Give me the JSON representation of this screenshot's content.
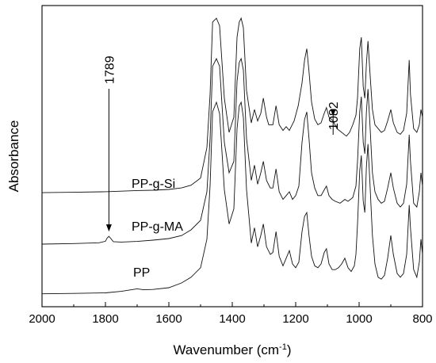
{
  "chart_data": {
    "type": "line",
    "title": "",
    "xlabel": "Wavenumber (cm",
    "xlabel_sup": "-1",
    "xlabel_close": ")",
    "ylabel": "Absorbance",
    "xlim": [
      2000,
      800
    ],
    "x_reversed": true,
    "y_tick_labels": false,
    "grid": false,
    "x_ticks": [
      2000,
      1800,
      1600,
      1400,
      1200,
      1000,
      800
    ],
    "x_tick_labels": [
      "2000",
      "1800",
      "1600",
      "1400",
      "1200",
      "1000",
      "800"
    ],
    "annotations": [
      {
        "label": "1789",
        "x": 1789,
        "series": "PP-g-MA"
      },
      {
        "label": "1082",
        "x": 1082,
        "series": "PP-g-Si"
      }
    ],
    "series": [
      {
        "name": "PP-g-Si",
        "points": [
          [
            2000,
            8.3
          ],
          [
            1900,
            8.5
          ],
          [
            1800,
            8.8
          ],
          [
            1700,
            9.4
          ],
          [
            1650,
            9.6
          ],
          [
            1600,
            10.0
          ],
          [
            1560,
            10.8
          ],
          [
            1530,
            12.2
          ],
          [
            1500,
            16
          ],
          [
            1480,
            32
          ],
          [
            1470,
            60
          ],
          [
            1462,
            98
          ],
          [
            1450,
            100
          ],
          [
            1440,
            96
          ],
          [
            1425,
            58
          ],
          [
            1410,
            40
          ],
          [
            1395,
            48
          ],
          [
            1385,
            90
          ],
          [
            1378,
            98
          ],
          [
            1372,
            100
          ],
          [
            1365,
            95
          ],
          [
            1355,
            62
          ],
          [
            1340,
            45
          ],
          [
            1330,
            52
          ],
          [
            1320,
            46
          ],
          [
            1310,
            50
          ],
          [
            1302,
            58
          ],
          [
            1292,
            48
          ],
          [
            1285,
            44
          ],
          [
            1272,
            44
          ],
          [
            1262,
            54
          ],
          [
            1252,
            44
          ],
          [
            1240,
            41
          ],
          [
            1230,
            43
          ],
          [
            1220,
            41
          ],
          [
            1205,
            46
          ],
          [
            1192,
            54
          ],
          [
            1180,
            66
          ],
          [
            1172,
            78
          ],
          [
            1165,
            84
          ],
          [
            1158,
            72
          ],
          [
            1150,
            56
          ],
          [
            1140,
            47
          ],
          [
            1130,
            44
          ],
          [
            1120,
            45
          ],
          [
            1110,
            50
          ],
          [
            1103,
            53
          ],
          [
            1095,
            48
          ],
          [
            1082,
            46
          ],
          [
            1070,
            42
          ],
          [
            1055,
            40
          ],
          [
            1040,
            38
          ],
          [
            1030,
            40
          ],
          [
            1020,
            44
          ],
          [
            1010,
            49
          ],
          [
            1005,
            58
          ],
          [
            998,
            84
          ],
          [
            993,
            90
          ],
          [
            987,
            64
          ],
          [
            982,
            58
          ],
          [
            977,
            76
          ],
          [
            972,
            88
          ],
          [
            966,
            72
          ],
          [
            958,
            52
          ],
          [
            950,
            44
          ],
          [
            940,
            42
          ],
          [
            930,
            40
          ],
          [
            920,
            41
          ],
          [
            910,
            46
          ],
          [
            900,
            52
          ],
          [
            892,
            45
          ],
          [
            880,
            40
          ],
          [
            870,
            39
          ],
          [
            860,
            41
          ],
          [
            850,
            50
          ],
          [
            842,
            78
          ],
          [
            838,
            60
          ],
          [
            828,
            42
          ],
          [
            818,
            40
          ],
          [
            810,
            44
          ],
          [
            805,
            52
          ],
          [
            800,
            48
          ]
        ]
      },
      {
        "name": "PP-g-MA",
        "points": [
          [
            2000,
            2.5
          ],
          [
            1900,
            2.8
          ],
          [
            1820,
            3.2
          ],
          [
            1800,
            4.0
          ],
          [
            1795,
            5.6
          ],
          [
            1789,
            6.6
          ],
          [
            1783,
            5.4
          ],
          [
            1775,
            3.8
          ],
          [
            1750,
            3.6
          ],
          [
            1700,
            3.9
          ],
          [
            1650,
            4.6
          ],
          [
            1600,
            5.4
          ],
          [
            1560,
            7.0
          ],
          [
            1530,
            10.0
          ],
          [
            1500,
            15
          ],
          [
            1480,
            30
          ],
          [
            1470,
            58
          ],
          [
            1462,
            96
          ],
          [
            1450,
            100
          ],
          [
            1440,
            96
          ],
          [
            1425,
            56
          ],
          [
            1410,
            40
          ],
          [
            1395,
            46
          ],
          [
            1385,
            88
          ],
          [
            1378,
            98
          ],
          [
            1372,
            100
          ],
          [
            1365,
            94
          ],
          [
            1355,
            58
          ],
          [
            1340,
            36
          ],
          [
            1330,
            44
          ],
          [
            1320,
            34
          ],
          [
            1310,
            40
          ],
          [
            1302,
            46
          ],
          [
            1292,
            36
          ],
          [
            1280,
            32
          ],
          [
            1272,
            32
          ],
          [
            1262,
            42
          ],
          [
            1252,
            30
          ],
          [
            1240,
            26
          ],
          [
            1230,
            28
          ],
          [
            1220,
            30
          ],
          [
            1210,
            26
          ],
          [
            1200,
            28
          ],
          [
            1190,
            33
          ],
          [
            1180,
            56
          ],
          [
            1172,
            68
          ],
          [
            1165,
            72
          ],
          [
            1158,
            58
          ],
          [
            1150,
            40
          ],
          [
            1140,
            32
          ],
          [
            1130,
            28
          ],
          [
            1120,
            28
          ],
          [
            1110,
            31
          ],
          [
            1103,
            33
          ],
          [
            1095,
            28
          ],
          [
            1085,
            26
          ],
          [
            1075,
            25
          ],
          [
            1060,
            24
          ],
          [
            1045,
            26
          ],
          [
            1035,
            25
          ],
          [
            1020,
            27
          ],
          [
            1010,
            33
          ],
          [
            1005,
            46
          ],
          [
            998,
            72
          ],
          [
            993,
            80
          ],
          [
            987,
            56
          ],
          [
            982,
            50
          ],
          [
            977,
            72
          ],
          [
            972,
            84
          ],
          [
            966,
            66
          ],
          [
            958,
            40
          ],
          [
            950,
            30
          ],
          [
            940,
            26
          ],
          [
            930,
            24
          ],
          [
            920,
            25
          ],
          [
            910,
            32
          ],
          [
            900,
            40
          ],
          [
            892,
            32
          ],
          [
            880,
            24
          ],
          [
            870,
            22
          ],
          [
            860,
            24
          ],
          [
            850,
            34
          ],
          [
            842,
            60
          ],
          [
            838,
            46
          ],
          [
            828,
            24
          ],
          [
            818,
            22
          ],
          [
            810,
            30
          ],
          [
            805,
            40
          ],
          [
            800,
            33
          ]
        ]
      },
      {
        "name": "PP",
        "points": [
          [
            2000,
            -0.7
          ],
          [
            1900,
            -0.5
          ],
          [
            1800,
            -0.2
          ],
          [
            1750,
            0.6
          ],
          [
            1700,
            1.9
          ],
          [
            1680,
            1.4
          ],
          [
            1650,
            1.6
          ],
          [
            1600,
            2.5
          ],
          [
            1560,
            5.0
          ],
          [
            1530,
            8.0
          ],
          [
            1500,
            13
          ],
          [
            1480,
            28
          ],
          [
            1470,
            56
          ],
          [
            1462,
            95
          ],
          [
            1450,
            100
          ],
          [
            1440,
            94
          ],
          [
            1425,
            54
          ],
          [
            1410,
            36
          ],
          [
            1395,
            44
          ],
          [
            1385,
            86
          ],
          [
            1378,
            98
          ],
          [
            1372,
            100
          ],
          [
            1365,
            92
          ],
          [
            1355,
            54
          ],
          [
            1340,
            26
          ],
          [
            1330,
            34
          ],
          [
            1320,
            24
          ],
          [
            1310,
            30
          ],
          [
            1302,
            36
          ],
          [
            1292,
            24
          ],
          [
            1280,
            20
          ],
          [
            1272,
            21
          ],
          [
            1262,
            32
          ],
          [
            1252,
            19
          ],
          [
            1240,
            14
          ],
          [
            1230,
            18
          ],
          [
            1220,
            22
          ],
          [
            1210,
            15
          ],
          [
            1200,
            13
          ],
          [
            1190,
            16
          ],
          [
            1180,
            32
          ],
          [
            1172,
            40
          ],
          [
            1165,
            42
          ],
          [
            1158,
            30
          ],
          [
            1150,
            19
          ],
          [
            1140,
            14
          ],
          [
            1130,
            13
          ],
          [
            1120,
            15
          ],
          [
            1110,
            21
          ],
          [
            1103,
            23
          ],
          [
            1095,
            15
          ],
          [
            1085,
            12
          ],
          [
            1075,
            12
          ],
          [
            1065,
            13
          ],
          [
            1055,
            15
          ],
          [
            1045,
            18
          ],
          [
            1035,
            13
          ],
          [
            1025,
            11
          ],
          [
            1015,
            14
          ],
          [
            1010,
            20
          ],
          [
            1005,
            36
          ],
          [
            998,
            64
          ],
          [
            993,
            72
          ],
          [
            987,
            48
          ],
          [
            982,
            42
          ],
          [
            977,
            66
          ],
          [
            972,
            78
          ],
          [
            966,
            58
          ],
          [
            958,
            30
          ],
          [
            950,
            15
          ],
          [
            940,
            8
          ],
          [
            930,
            7
          ],
          [
            920,
            9
          ],
          [
            910,
            18
          ],
          [
            900,
            30
          ],
          [
            892,
            20
          ],
          [
            880,
            10
          ],
          [
            870,
            8
          ],
          [
            860,
            10
          ],
          [
            850,
            20
          ],
          [
            842,
            46
          ],
          [
            838,
            34
          ],
          [
            828,
            12
          ],
          [
            818,
            8
          ],
          [
            810,
            16
          ],
          [
            805,
            28
          ],
          [
            800,
            20
          ]
        ]
      }
    ]
  }
}
